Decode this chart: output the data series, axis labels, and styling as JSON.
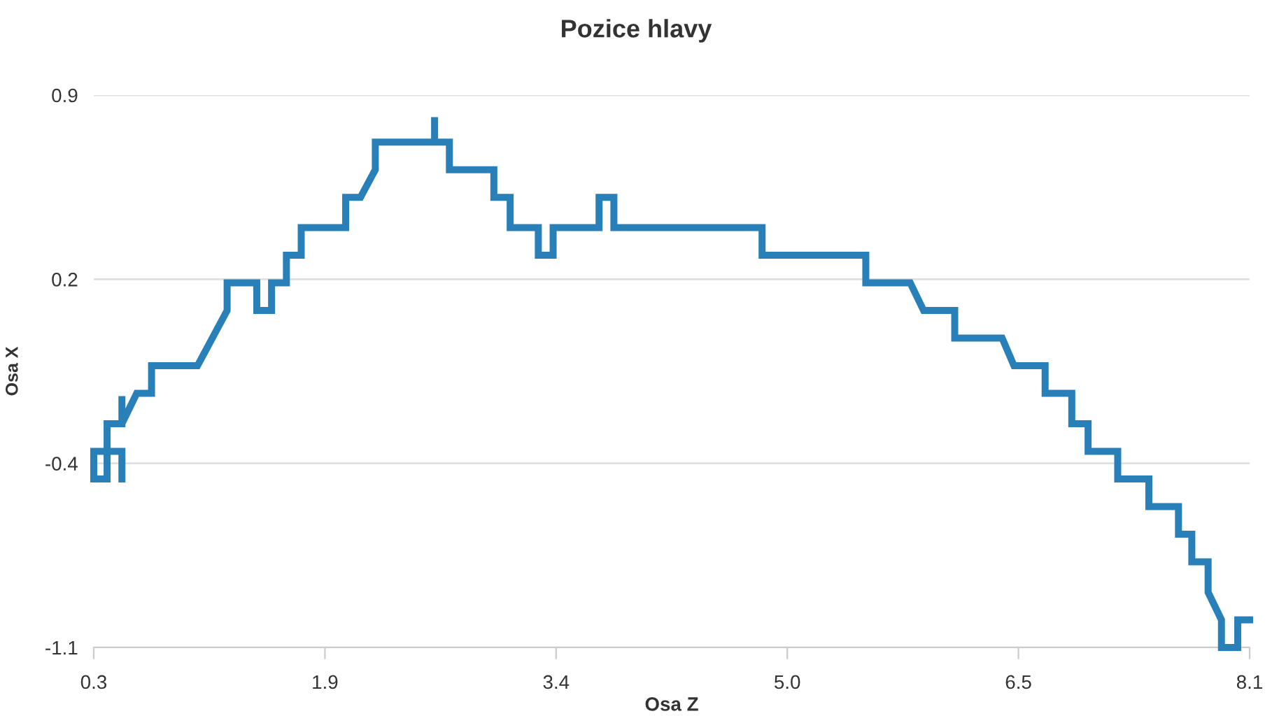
{
  "chart_data": {
    "type": "line",
    "title": "Pozice hlavy",
    "xlabel": "Osa Z",
    "ylabel": "Osa X",
    "xlim": [
      0.3,
      8.1
    ],
    "ylim": [
      -1.1,
      0.9
    ],
    "xticks": [
      0.3,
      {
        "value": 1.86,
        "label": "1.9"
      },
      {
        "value": 3.42,
        "label": "3.4"
      },
      {
        "value": 4.98,
        "label": "5.0"
      },
      {
        "value": 6.54,
        "label": "6.5"
      },
      8.1
    ],
    "yticks": [
      -1.1,
      {
        "value": -0.4333,
        "label": "-0.4"
      },
      {
        "value": 0.2333,
        "label": "0.2"
      },
      0.9
    ],
    "grid": "y",
    "marker": "none",
    "line_style": "solid",
    "legend": false,
    "series": [
      {
        "color": "#2980b9",
        "x": [
          0.49,
          0.49,
          0.3,
          0.3,
          0.39,
          0.39,
          0.49,
          0.49,
          0.49,
          0.59,
          0.69,
          0.69,
          1.0,
          1.2,
          1.2,
          1.4,
          1.4,
          1.5,
          1.5,
          1.6,
          1.6,
          1.7,
          1.7,
          2.0,
          2.0,
          2.1,
          2.2,
          2.2,
          2.6,
          2.6,
          2.6,
          2.7,
          2.7,
          3.0,
          3.0,
          3.11,
          3.11,
          3.3,
          3.3,
          3.4,
          3.4,
          3.71,
          3.71,
          3.81,
          3.81,
          4.81,
          4.81,
          5.51,
          5.51,
          5.81,
          5.9,
          6.11,
          6.11,
          6.43,
          6.51,
          6.72,
          6.72,
          6.9,
          6.9,
          7.01,
          7.01,
          7.21,
          7.21,
          7.42,
          7.42,
          7.62,
          7.62,
          7.71,
          7.71,
          7.82,
          7.82,
          7.91,
          7.91,
          8.02,
          8.02,
          8.1
        ],
        "values": [
          -0.49,
          -0.39,
          -0.39,
          -0.49,
          -0.49,
          -0.29,
          -0.29,
          -0.19,
          -0.29,
          -0.18,
          -0.18,
          -0.08,
          -0.08,
          0.12,
          0.22,
          0.22,
          0.12,
          0.12,
          0.22,
          0.22,
          0.32,
          0.32,
          0.42,
          0.42,
          0.53,
          0.53,
          0.63,
          0.73,
          0.73,
          0.82,
          0.73,
          0.73,
          0.63,
          0.63,
          0.53,
          0.53,
          0.42,
          0.42,
          0.32,
          0.32,
          0.42,
          0.42,
          0.53,
          0.53,
          0.42,
          0.42,
          0.32,
          0.32,
          0.22,
          0.22,
          0.12,
          0.12,
          0.02,
          0.02,
          -0.08,
          -0.08,
          -0.18,
          -0.18,
          -0.29,
          -0.29,
          -0.39,
          -0.39,
          -0.49,
          -0.49,
          -0.59,
          -0.59,
          -0.69,
          -0.69,
          -0.79,
          -0.79,
          -0.9,
          -1.0,
          -1.1,
          -1.1,
          -1.0,
          -1.0
        ]
      }
    ]
  }
}
